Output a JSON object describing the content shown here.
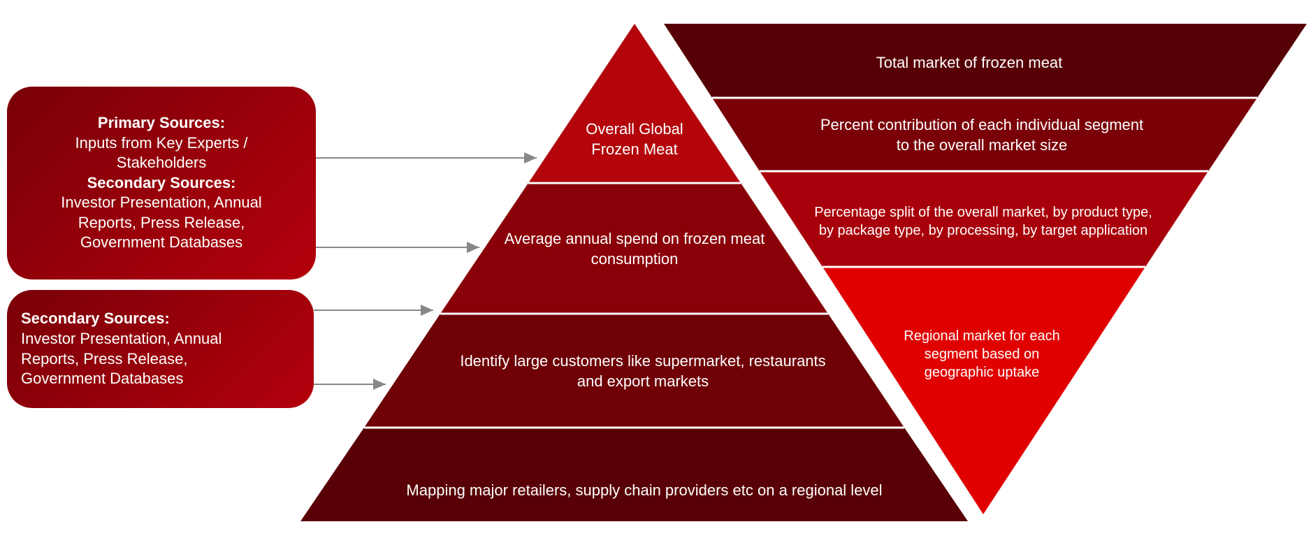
{
  "sources": [
    {
      "items": [
        {
          "heading": "Primary Sources:",
          "text": "Inputs from Key Experts / Stakeholders"
        },
        {
          "heading": "Secondary Sources:",
          "text": "Investor Presentation, Annual Reports, Press Release, Government Databases"
        }
      ]
    },
    {
      "items": [
        {
          "heading": "Secondary Sources:",
          "text": "Investor Presentation, Annual Reports, Press Release, Government Databases"
        }
      ]
    }
  ],
  "pyramid": {
    "levels": [
      "Overall Global Frozen Meat",
      "Average annual spend on frozen meat consumption",
      "Identify large customers like supermarket, restaurants and export markets",
      "Mapping major retailers, supply chain providers etc on a regional level"
    ]
  },
  "inverted_pyramid": {
    "levels": [
      "Total market of frozen meat",
      "Percent contribution of each individual segment to the overall market size",
      "Percentage split of the overall market, by product type, by package type, by processing, by target application",
      "Regional market for each segment based on geographic uptake"
    ]
  }
}
